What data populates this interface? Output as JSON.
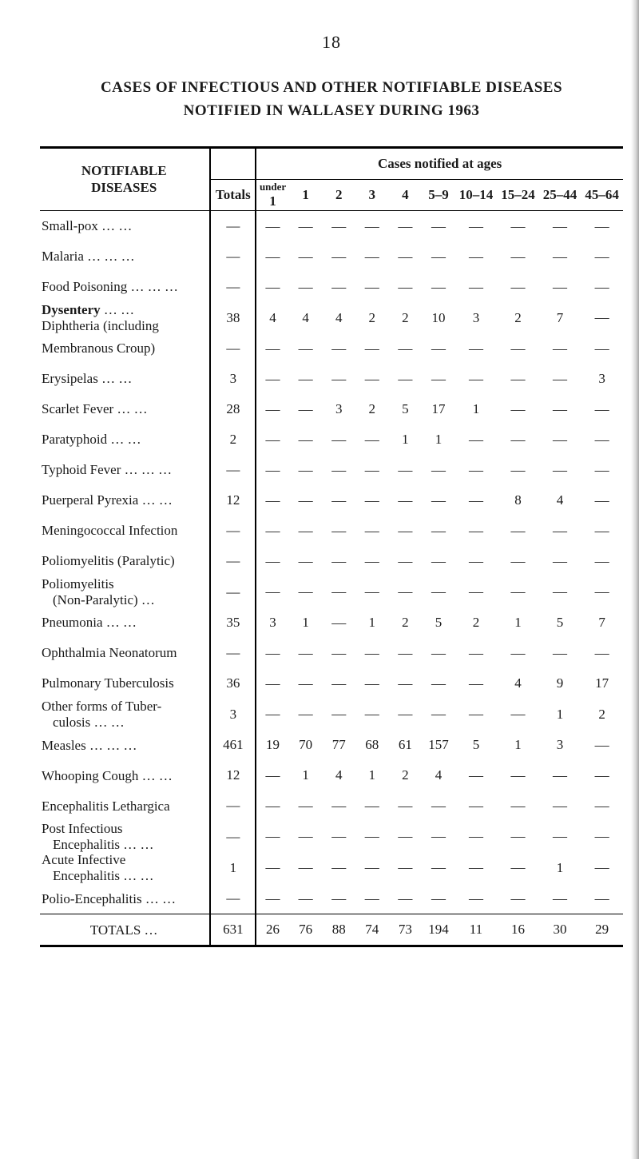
{
  "page_number": "18",
  "title_lines": [
    "CASES OF INFECTIOUS AND OTHER NOTIFIABLE DISEASES",
    "NOTIFIED IN WALLASEY DURING 1963"
  ],
  "table": {
    "stub_header_1": "NOTIFIABLE",
    "stub_header_2": "DISEASES",
    "totals_header": "Totals",
    "age_span_header": "Cases notified at ages",
    "age_headers": {
      "under": "under",
      "c1": "1",
      "c2": "1",
      "c3": "2",
      "c4": "3",
      "c5": "4",
      "c6": "5–9",
      "c7": "10–14",
      "c8": "15–24",
      "c9": "25–44",
      "c10": "45–64"
    },
    "rows": [
      {
        "label": "Small-pox",
        "dots": true,
        "totals": "—",
        "cells": [
          "—",
          "—",
          "—",
          "—",
          "—",
          "—",
          "—",
          "—",
          "—",
          "—"
        ]
      },
      {
        "label": "Malaria …",
        "dots": true,
        "totals": "—",
        "cells": [
          "—",
          "—",
          "—",
          "—",
          "—",
          "—",
          "—",
          "—",
          "—",
          "—"
        ]
      },
      {
        "label": "Food Poisoning …",
        "dots": true,
        "totals": "—",
        "cells": [
          "—",
          "—",
          "—",
          "—",
          "—",
          "—",
          "—",
          "—",
          "—",
          "—"
        ]
      },
      {
        "label": "Dysentery",
        "dots": true,
        "sublabel": "Diphtheria (including",
        "totals": "38",
        "cells": [
          "4",
          "4",
          "4",
          "2",
          "2",
          "10",
          "3",
          "2",
          "7",
          "—"
        ]
      },
      {
        "label": "   Membranous Croup)",
        "dots": false,
        "totals": "—",
        "cells": [
          "—",
          "—",
          "—",
          "—",
          "—",
          "—",
          "—",
          "—",
          "—",
          "—"
        ]
      },
      {
        "label": "Erysipelas",
        "dots": true,
        "totals": "3",
        "cells": [
          "—",
          "—",
          "—",
          "—",
          "—",
          "—",
          "—",
          "—",
          "—",
          "3"
        ]
      },
      {
        "label": "Scarlet Fever",
        "dots": true,
        "totals": "28",
        "cells": [
          "—",
          "—",
          "3",
          "2",
          "5",
          "17",
          "1",
          "—",
          "—",
          "—"
        ]
      },
      {
        "label": "Paratyphoid",
        "dots": true,
        "totals": "2",
        "cells": [
          "—",
          "—",
          "—",
          "—",
          "1",
          "1",
          "—",
          "—",
          "—",
          "—"
        ]
      },
      {
        "label": "Typhoid Fever …",
        "dots": true,
        "totals": "—",
        "cells": [
          "—",
          "—",
          "—",
          "—",
          "—",
          "—",
          "—",
          "—",
          "—",
          "—"
        ]
      },
      {
        "label": "Puerperal Pyrexia",
        "dots": true,
        "totals": "12",
        "cells": [
          "—",
          "—",
          "—",
          "—",
          "—",
          "—",
          "—",
          "8",
          "4",
          "—"
        ]
      },
      {
        "label": "Meningococcal Infection",
        "dots": false,
        "totals": "—",
        "cells": [
          "—",
          "—",
          "—",
          "—",
          "—",
          "—",
          "—",
          "—",
          "—",
          "—"
        ]
      },
      {
        "label": "Poliomyelitis (Paralytic)",
        "dots": false,
        "totals": "—",
        "cells": [
          "—",
          "—",
          "—",
          "—",
          "—",
          "—",
          "—",
          "—",
          "—",
          "—"
        ]
      },
      {
        "label": "Poliomyelitis",
        "sublabel2": "(Non-Paralytic)",
        "dots": true,
        "totals": "—",
        "cells": [
          "—",
          "—",
          "—",
          "—",
          "—",
          "—",
          "—",
          "—",
          "—",
          "—"
        ]
      },
      {
        "label": "Pneumonia",
        "dots": true,
        "totals": "35",
        "cells": [
          "3",
          "1",
          "—",
          "1",
          "2",
          "5",
          "2",
          "1",
          "5",
          "7"
        ]
      },
      {
        "label": "Ophthalmia Neonatorum",
        "dots": false,
        "totals": "—",
        "cells": [
          "—",
          "—",
          "—",
          "—",
          "—",
          "—",
          "—",
          "—",
          "—",
          "—"
        ]
      },
      {
        "label": "Pulmonary Tuberculosis",
        "dots": false,
        "totals": "36",
        "cells": [
          "—",
          "—",
          "—",
          "—",
          "—",
          "—",
          "—",
          "4",
          "9",
          "17"
        ]
      },
      {
        "label": "Other forms of Tuber-",
        "sublabel2": "culosis …",
        "dots": true,
        "totals": "3",
        "cells": [
          "—",
          "—",
          "—",
          "—",
          "—",
          "—",
          "—",
          "—",
          "1",
          "2"
        ]
      },
      {
        "label": "Measles …",
        "dots": true,
        "totals": "461",
        "cells": [
          "19",
          "70",
          "77",
          "68",
          "61",
          "157",
          "5",
          "1",
          "3",
          "—"
        ]
      },
      {
        "label": "Whooping Cough",
        "dots": true,
        "totals": "12",
        "cells": [
          "—",
          "1",
          "4",
          "1",
          "2",
          "4",
          "—",
          "—",
          "—",
          "—"
        ]
      },
      {
        "label": "Encephalitis Lethargica",
        "dots": false,
        "totals": "—",
        "cells": [
          "—",
          "—",
          "—",
          "—",
          "—",
          "—",
          "—",
          "—",
          "—",
          "—"
        ]
      },
      {
        "label": "Post Infectious",
        "sublabel2": "Encephalitis …",
        "dots": true,
        "totals": "—",
        "cells": [
          "—",
          "—",
          "—",
          "—",
          "—",
          "—",
          "—",
          "—",
          "—",
          "—"
        ]
      },
      {
        "label": "Acute Infective",
        "sublabel2": "Encephalitis …",
        "dots": true,
        "totals": "1",
        "cells": [
          "—",
          "—",
          "—",
          "—",
          "—",
          "—",
          "—",
          "—",
          "1",
          "—"
        ]
      },
      {
        "label": "Polio-Encephalitis",
        "dots": true,
        "totals": "—",
        "cells": [
          "—",
          "—",
          "—",
          "—",
          "—",
          "—",
          "—",
          "—",
          "—",
          "—"
        ]
      }
    ],
    "totals_row": {
      "label": "TOTALS …",
      "totals": "631",
      "cells": [
        "26",
        "76",
        "88",
        "74",
        "73",
        "194",
        "11",
        "16",
        "30",
        "29"
      ]
    }
  },
  "style": {
    "font_family": "Times New Roman",
    "text_color": "#1a1a1a",
    "bg_color": "#ffffff",
    "rule_color": "#000000",
    "dash_glyph": "—"
  }
}
